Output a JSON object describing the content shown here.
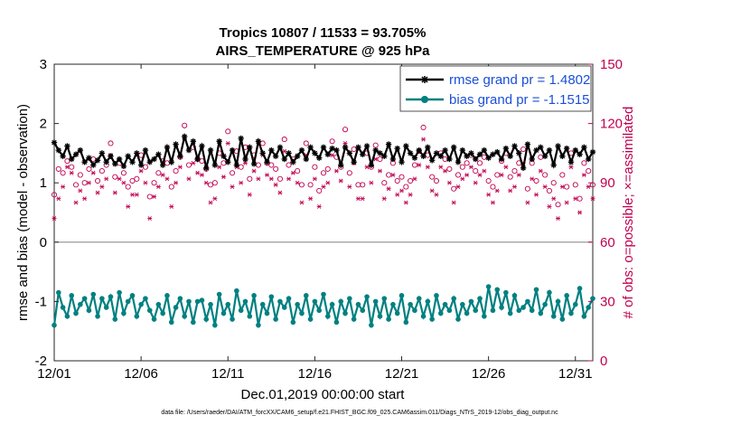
{
  "chart_data": {
    "type": "line",
    "title_line1": "Tropics 10807 / 11533 = 93.705%",
    "title_line2": "AIRS_TEMPERATURE @ 925 hPa",
    "xlabel": "Dec.01,2019 00:00:00 start",
    "ylabel_left": "rmse and bias (model - observation)",
    "ylabel_right": "# of obs: o=possible; ×=assimilated",
    "footnote": "data file: /Users/raeder/DAI/ATM_forcXX/CAM6_setup/f.e21.FHIST_BGC.f09_025.CAM6assim.011/Diags_NTrS_2019-12/obs_diag_output.nc",
    "x_ticks": [
      "12/01",
      "12/06",
      "12/11",
      "12/16",
      "12/21",
      "12/26",
      "12/31"
    ],
    "x_tick_values": [
      1,
      6,
      11,
      16,
      21,
      26,
      31
    ],
    "xlim": [
      1,
      32
    ],
    "y_left_ticks": [
      "-2",
      "-1",
      "0",
      "1",
      "2",
      "3"
    ],
    "y_left_values": [
      -2,
      -1,
      0,
      1,
      2,
      3
    ],
    "ylim_left": [
      -2,
      3
    ],
    "y_right_ticks": [
      "0",
      "30",
      "60",
      "90",
      "120",
      "150"
    ],
    "y_right_values": [
      0,
      30,
      60,
      90,
      120,
      150
    ],
    "ylim_right": [
      0,
      150
    ],
    "colors": {
      "rmse": "#000000",
      "bias": "#008080",
      "obs": "#c00050",
      "legend_text": "#1a4fd8",
      "zero_line": "#aaaaaa"
    },
    "legend": [
      {
        "name": "rmse grand pr = 1.4802",
        "key": "rmse"
      },
      {
        "name": "bias grand pr = -1.1515",
        "key": "bias"
      }
    ],
    "legend_position": "top-right",
    "series_step_days": 0.25,
    "series_start_day": 1.0,
    "series": [
      {
        "name": "rmse",
        "values": [
          1.68,
          1.55,
          1.45,
          1.62,
          1.4,
          1.48,
          1.55,
          1.35,
          1.42,
          1.3,
          1.38,
          1.5,
          1.35,
          1.45,
          1.32,
          1.4,
          1.28,
          1.45,
          1.35,
          1.5,
          1.3,
          1.55,
          1.35,
          1.4,
          1.48,
          1.3,
          1.6,
          1.35,
          1.65,
          1.45,
          1.78,
          1.55,
          1.7,
          1.4,
          1.62,
          1.25,
          1.55,
          1.3,
          1.7,
          1.45,
          1.35,
          1.55,
          1.3,
          1.75,
          1.4,
          1.6,
          1.32,
          1.7,
          1.5,
          1.35,
          1.55,
          1.45,
          1.6,
          1.4,
          1.5,
          1.35,
          1.45,
          1.55,
          1.4,
          1.6,
          1.5,
          1.42,
          1.6,
          1.48,
          1.58,
          1.55,
          1.3,
          1.6,
          1.5,
          1.35,
          1.6,
          1.48,
          1.62,
          1.3,
          1.55,
          1.5,
          1.45,
          1.65,
          1.4,
          1.58,
          1.35,
          1.62,
          1.5,
          1.42,
          1.55,
          1.45,
          1.6,
          1.38,
          1.5,
          1.45,
          1.55,
          1.4,
          1.6,
          1.35,
          1.55,
          1.45,
          1.5,
          1.4,
          1.48,
          1.55,
          1.42,
          1.48,
          1.52,
          1.4,
          1.58,
          1.45,
          1.62,
          1.5,
          1.25,
          1.65,
          1.4,
          1.55,
          1.6,
          1.45,
          1.55,
          1.3,
          1.62,
          1.45,
          1.58,
          1.35,
          1.55,
          1.48,
          1.6,
          1.4,
          1.52,
          1.3,
          1.55,
          1.45,
          1.62,
          1.4,
          1.55,
          1.35,
          1.65,
          1.4,
          1.75,
          1.3,
          1.7,
          1.45,
          1.6,
          1.35,
          1.78,
          1.4,
          1.55,
          1.3,
          1.7,
          1.45,
          1.58,
          1.4,
          1.62,
          1.5,
          1.35,
          1.55,
          1.45,
          1.6,
          1.4,
          1.55,
          1.35,
          1.55,
          1.45,
          1.48,
          1.52,
          1.4,
          1.55,
          1.45,
          1.5,
          1.35,
          1.55,
          1.42,
          1.52,
          1.4,
          1.48,
          1.45,
          1.4,
          1.5,
          1.35,
          1.42,
          1.38,
          1.3,
          1.22
        ]
      },
      {
        "name": "bias",
        "values": [
          -1.4,
          -0.85,
          -1.1,
          -1.25,
          -0.9,
          -1.2,
          -1.05,
          -0.95,
          -1.15,
          -0.88,
          -1.25,
          -0.95,
          -1.1,
          -0.92,
          -1.3,
          -0.85,
          -1.2,
          -1.0,
          -0.9,
          -1.25,
          -1.05,
          -0.95,
          -1.15,
          -1.3,
          -1.05,
          -1.2,
          -0.9,
          -1.35,
          -1.1,
          -0.95,
          -1.25,
          -1.0,
          -1.35,
          -1.0,
          -0.98,
          -1.3,
          -1.05,
          -1.4,
          -0.88,
          -1.2,
          -1.05,
          -1.3,
          -0.82,
          -1.15,
          -1.0,
          -1.25,
          -0.9,
          -1.4,
          -1.05,
          -1.2,
          -0.92,
          -1.3,
          -1.0,
          -1.1,
          -0.95,
          -1.35,
          -1.05,
          -1.2,
          -0.9,
          -1.3,
          -1.0,
          -1.15,
          -0.88,
          -1.25,
          -1.05,
          -1.35,
          -1.0,
          -1.2,
          -0.95,
          -1.3,
          -1.05,
          -1.15,
          -0.92,
          -1.4,
          -1.0,
          -1.25,
          -0.95,
          -1.3,
          -1.05,
          -1.2,
          -0.9,
          -1.35,
          -1.05,
          -1.15,
          -0.95,
          -1.25,
          -1.0,
          -1.3,
          -0.9,
          -1.2,
          -1.05,
          -1.15,
          -0.95,
          -1.3,
          -1.05,
          -1.2,
          -1.0,
          -1.15,
          -0.95,
          -1.25,
          -0.75,
          -1.15,
          -0.8,
          -1.1,
          -0.85,
          -1.2,
          -0.9,
          -1.15,
          -1.1,
          -1.0,
          -1.15,
          -0.8,
          -1.2,
          -1.05,
          -0.85,
          -1.25,
          -1.0,
          -1.3,
          -0.9,
          -1.2,
          -1.05,
          -0.78,
          -1.25,
          -1.1,
          -0.95,
          -1.35,
          -1.15,
          -1.0,
          -1.45,
          -1.05,
          -1.3,
          -0.95,
          -1.4,
          -1.15,
          -1.5,
          -1.1,
          -1.4,
          -1.25,
          -1.05,
          -1.35,
          -1.2,
          -1.1,
          -1.3,
          -1.2,
          -1.05,
          -1.35,
          -1.15,
          -1.25,
          -1.0,
          -1.3,
          -1.1,
          -1.2,
          -1.0,
          -1.25,
          -1.05,
          -0.9,
          -1.2,
          -1.05,
          -1.25,
          -0.95,
          -1.15,
          -1.05,
          -0.9,
          -1.2,
          -1.0,
          -1.1,
          -0.95,
          -1.15,
          -0.88,
          -1.05,
          -0.92,
          -1.1,
          -0.85,
          -1.0,
          -0.9,
          -0.95
        ]
      },
      {
        "name": "obs_possible",
        "values": [
          84,
          97,
          95,
          101,
          98,
          89,
          94,
          90,
          97,
          102,
          91,
          96,
          99,
          110,
          93,
          100,
          95,
          88,
          91,
          92,
          104,
          98,
          83,
          90,
          95,
          101,
          100,
          88,
          96,
          103,
          119,
          99,
          108,
          102,
          101,
          97,
          89,
          90,
          105,
          100,
          116,
          95,
          106,
          98,
          108,
          92,
          104,
          99,
          110,
          100,
          99,
          97,
          92,
          112,
          99,
          102,
          96,
          89,
          110,
          89,
          98,
          86,
          95,
          97,
          111,
          103,
          98,
          117,
          95,
          107,
          89,
          89,
          105,
          98,
          109,
          102,
          90,
          94,
          100,
          91,
          93,
          88,
          91,
          99,
          106,
          118,
          104,
          93,
          91,
          105,
          102,
          97,
          87,
          94,
          98,
          100,
          104,
          96,
          100,
          103,
          91,
          88,
          94,
          101,
          105,
          93,
          96,
          100,
          107,
          87,
          100,
          91,
          103,
          94,
          86,
          90,
          79,
          94,
          88,
          105,
          89,
          82,
          100,
          96,
          89,
          92,
          93,
          92,
          88,
          91,
          97,
          87,
          89,
          83,
          88,
          95,
          102,
          81,
          92,
          80,
          81,
          100,
          90,
          88,
          102,
          80,
          84,
          78,
          85,
          95,
          98,
          73,
          91,
          84,
          87,
          98,
          86,
          87,
          84,
          89,
          91,
          86,
          88,
          99,
          81,
          96,
          90,
          85,
          96,
          84,
          94,
          92,
          88,
          79,
          100,
          98,
          80,
          97,
          88,
          86,
          90,
          72,
          96,
          73
        ]
      },
      {
        "name": "obs_assimilated",
        "values": [
          72,
          82,
          88,
          98,
          95,
          80,
          86,
          82,
          90,
          95,
          85,
          88,
          92,
          104,
          85,
          92,
          90,
          78,
          84,
          84,
          96,
          90,
          72,
          83,
          88,
          94,
          92,
          78,
          90,
          98,
          112,
          92,
          100,
          95,
          94,
          90,
          80,
          82,
          98,
          93,
          110,
          88,
          98,
          90,
          100,
          84,
          96,
          92,
          104,
          94,
          92,
          89,
          85,
          106,
          92,
          95,
          90,
          80,
          104,
          82,
          92,
          78,
          88,
          90,
          104,
          96,
          91,
          110,
          88,
          100,
          82,
          82,
          98,
          90,
          102,
          96,
          82,
          87,
          94,
          84,
          86,
          80,
          84,
          92,
          99,
          112,
          98,
          86,
          84,
          98,
          96,
          90,
          80,
          88,
          92,
          94,
          98,
          90,
          94,
          96,
          84,
          80,
          86,
          94,
          98,
          86,
          88,
          94,
          100,
          80,
          92,
          84,
          96,
          88,
          78,
          82,
          72,
          88,
          80,
          98,
          82,
          75,
          94,
          88,
          82,
          85,
          86,
          86,
          80,
          84,
          90,
          80,
          82,
          76,
          80,
          88,
          96,
          74,
          86,
          72,
          75,
          93,
          84,
          80,
          96,
          73,
          78,
          70,
          78,
          88,
          92,
          65,
          84,
          76,
          80,
          92,
          78,
          80,
          76,
          82,
          84,
          78,
          82,
          92,
          74,
          90,
          82,
          78,
          90,
          76,
          88,
          84,
          80,
          70,
          94,
          90,
          72,
          90,
          80,
          78,
          84,
          66,
          90,
          68
        ]
      }
    ]
  }
}
